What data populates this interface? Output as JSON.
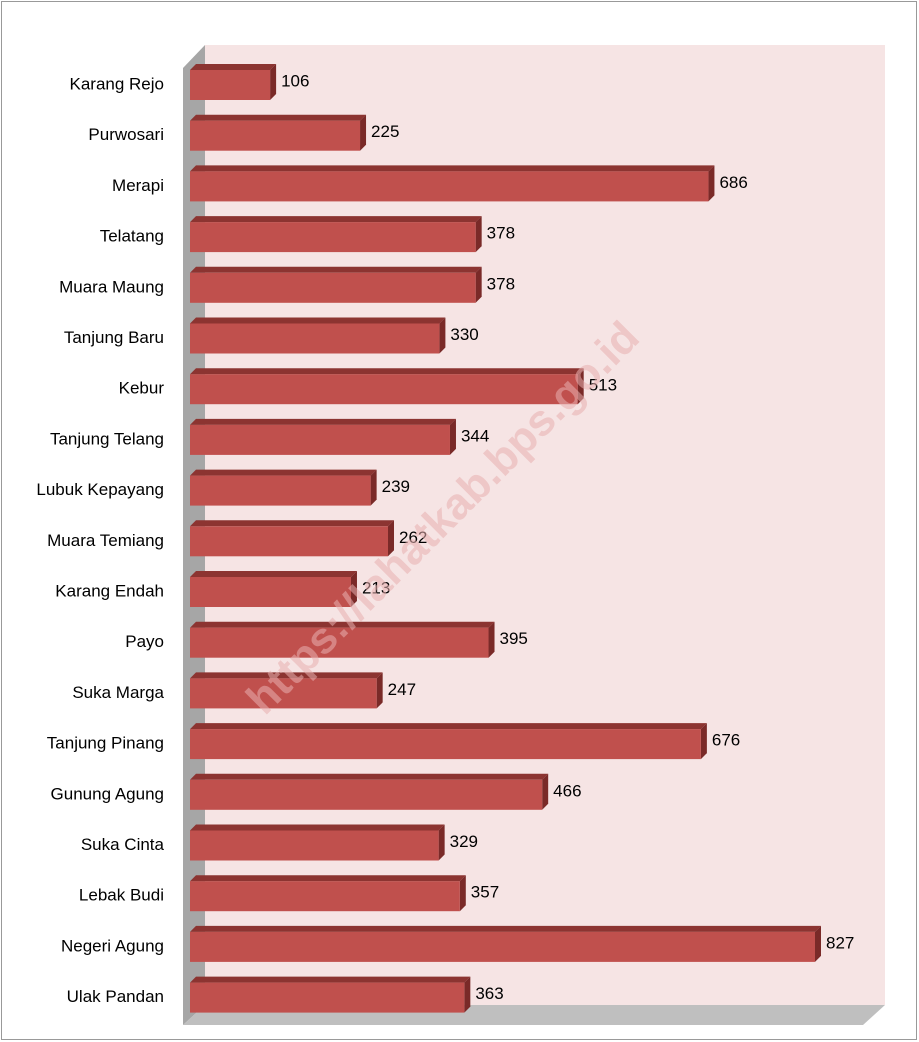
{
  "chart_data": {
    "type": "bar",
    "orientation": "horizontal",
    "categories": [
      "Karang Rejo",
      "Purwosari",
      "Merapi",
      "Telatang",
      "Muara Maung",
      "Tanjung Baru",
      "Kebur",
      "Tanjung Telang",
      "Lubuk Kepayang",
      "Muara Temiang",
      "Karang Endah",
      "Payo",
      "Suka Marga",
      "Tanjung Pinang",
      "Gunung Agung",
      "Suka Cinta",
      "Lebak Budi",
      "Negeri Agung",
      "Ulak Pandan"
    ],
    "values": [
      106,
      225,
      686,
      378,
      378,
      330,
      513,
      344,
      239,
      262,
      213,
      395,
      247,
      676,
      466,
      329,
      357,
      827,
      363
    ],
    "color": "#c0504d",
    "watermark": "https://lahatkab.bps.go.id"
  }
}
